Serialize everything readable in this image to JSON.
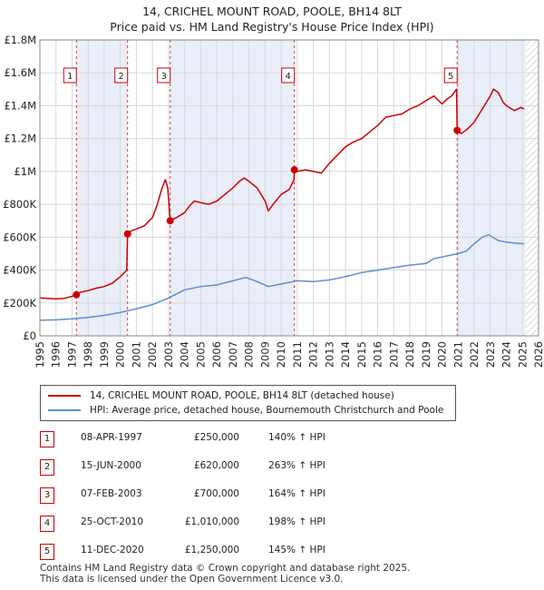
{
  "title": "14, CRICHEL MOUNT ROAD, POOLE, BH14 8LT",
  "subtitle": "Price paid vs. HM Land Registry's House Price Index (HPI)",
  "chart_data": {
    "type": "line",
    "title": "14, CRICHEL MOUNT ROAD, POOLE, BH14 8LT",
    "subtitle": "Price paid vs. HM Land Registry's House Price Index (HPI)",
    "xlim": [
      1995,
      2026
    ],
    "ylim": [
      0,
      1800000
    ],
    "y_ticks": [
      0,
      200000,
      400000,
      600000,
      800000,
      1000000,
      1200000,
      1400000,
      1600000,
      1800000
    ],
    "y_tick_labels": [
      "£0",
      "£200K",
      "£400K",
      "£600K",
      "£800K",
      "£1M",
      "£1.2M",
      "£1.4M",
      "£1.6M",
      "£1.8M"
    ],
    "x_ticks": [
      1995,
      1996,
      1997,
      1998,
      1999,
      2000,
      2001,
      2002,
      2003,
      2004,
      2005,
      2006,
      2007,
      2008,
      2009,
      2010,
      2011,
      2012,
      2013,
      2014,
      2015,
      2016,
      2017,
      2018,
      2019,
      2020,
      2021,
      2022,
      2023,
      2024,
      2025,
      2026
    ],
    "grid": true,
    "shaded_intervals": [
      [
        1997.27,
        2000.45
      ],
      [
        2003.1,
        2010.82
      ],
      [
        2020.94,
        2025.2
      ]
    ],
    "hatched_from": 2025.2,
    "series": [
      {
        "name": "14, CRICHEL MOUNT ROAD, POOLE, BH14 8LT (detached house)",
        "color": "#cc0000",
        "x": [
          1995,
          1995.5,
          1996,
          1996.5,
          1997,
          1997.27,
          1997.5,
          1998,
          1998.5,
          1999,
          1999.5,
          2000,
          2000.4,
          2000.45,
          2000.7,
          2001,
          2001.5,
          2002,
          2002.3,
          2002.6,
          2002.8,
          2002.95,
          2003.1,
          2003.5,
          2004,
          2004.3,
          2004.6,
          2005,
          2005.5,
          2006,
          2006.5,
          2007,
          2007.4,
          2007.7,
          2008,
          2008.5,
          2009,
          2009.2,
          2009.5,
          2010,
          2010.5,
          2010.8,
          2010.82,
          2011,
          2011.5,
          2012,
          2012.5,
          2013,
          2013.5,
          2014,
          2014.5,
          2015,
          2015.5,
          2016,
          2016.5,
          2017,
          2017.5,
          2018,
          2018.5,
          2019,
          2019.5,
          2020,
          2020.3,
          2020.6,
          2020.9,
          2020.94,
          2021.2,
          2021.6,
          2022,
          2022.5,
          2023,
          2023.2,
          2023.5,
          2023.8,
          2024,
          2024.5,
          2024.9,
          2025.1
        ],
        "y": [
          230000,
          228000,
          225000,
          228000,
          240000,
          250000,
          265000,
          275000,
          290000,
          300000,
          320000,
          360000,
          400000,
          620000,
          640000,
          650000,
          670000,
          720000,
          800000,
          900000,
          950000,
          900000,
          700000,
          720000,
          750000,
          790000,
          820000,
          810000,
          800000,
          820000,
          860000,
          900000,
          940000,
          960000,
          940000,
          900000,
          820000,
          760000,
          800000,
          860000,
          890000,
          950000,
          1010000,
          1000000,
          1010000,
          1000000,
          990000,
          1050000,
          1100000,
          1150000,
          1180000,
          1200000,
          1240000,
          1280000,
          1330000,
          1340000,
          1350000,
          1380000,
          1400000,
          1430000,
          1460000,
          1410000,
          1440000,
          1460000,
          1500000,
          1250000,
          1230000,
          1260000,
          1300000,
          1380000,
          1460000,
          1500000,
          1480000,
          1420000,
          1400000,
          1370000,
          1390000,
          1380000
        ]
      },
      {
        "name": "HPI: Average price, detached house, Bournemouth Christchurch and Poole",
        "color": "#5b8fd1",
        "x": [
          1995,
          1996,
          1997,
          1998,
          1999,
          2000,
          2001,
          2002,
          2003,
          2004,
          2005,
          2006,
          2007,
          2007.8,
          2008.5,
          2009.2,
          2010,
          2011,
          2012,
          2013,
          2014,
          2015,
          2016,
          2017,
          2018,
          2019,
          2019.5,
          2020,
          2021,
          2021.5,
          2022,
          2022.5,
          2022.9,
          2023.5,
          2024,
          2024.5,
          2025.1
        ],
        "y": [
          95000,
          97000,
          103000,
          112000,
          125000,
          142000,
          165000,
          190000,
          230000,
          280000,
          300000,
          310000,
          335000,
          355000,
          330000,
          300000,
          315000,
          335000,
          330000,
          340000,
          360000,
          385000,
          400000,
          415000,
          430000,
          440000,
          470000,
          480000,
          500000,
          515000,
          560000,
          600000,
          615000,
          580000,
          570000,
          565000,
          560000
        ]
      }
    ],
    "markers": [
      {
        "label": "1",
        "x": 1997.27,
        "y": 250000
      },
      {
        "label": "2",
        "x": 2000.45,
        "y": 620000
      },
      {
        "label": "3",
        "x": 2003.1,
        "y": 700000
      },
      {
        "label": "4",
        "x": 2010.82,
        "y": 1010000
      },
      {
        "label": "5",
        "x": 2020.94,
        "y": 1250000
      }
    ]
  },
  "legend": {
    "property": "14, CRICHEL MOUNT ROAD, POOLE, BH14 8LT (detached house)",
    "hpi": "HPI: Average price, detached house, Bournemouth Christchurch and Poole"
  },
  "sales": [
    {
      "num": "1",
      "date": "08-APR-1997",
      "price": "£250,000",
      "hpi": "140% ↑ HPI"
    },
    {
      "num": "2",
      "date": "15-JUN-2000",
      "price": "£620,000",
      "hpi": "263% ↑ HPI"
    },
    {
      "num": "3",
      "date": "07-FEB-2003",
      "price": "£700,000",
      "hpi": "164% ↑ HPI"
    },
    {
      "num": "4",
      "date": "25-OCT-2010",
      "price": "£1,010,000",
      "hpi": "198% ↑ HPI"
    },
    {
      "num": "5",
      "date": "11-DEC-2020",
      "price": "£1,250,000",
      "hpi": "145% ↑ HPI"
    }
  ],
  "footer": {
    "line1": "Contains HM Land Registry data © Crown copyright and database right 2025.",
    "line2": "This data is licensed under the Open Government Licence v3.0."
  }
}
